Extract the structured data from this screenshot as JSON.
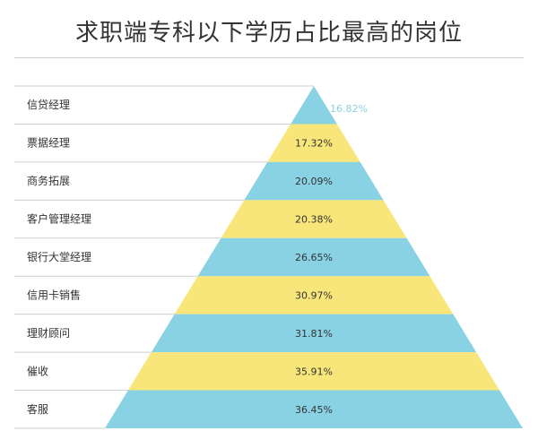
{
  "title": "求职端专科以下学历占比最高的岗位",
  "colors": {
    "blue": "#89D2E4",
    "yellow": "#F9E67A",
    "top_value_text": "#89D2E4",
    "row_line": "#cfcfcf"
  },
  "chart_data": {
    "type": "pyramid",
    "title": "求职端专科以下学历占比最高的岗位",
    "categories": [
      "信贷经理",
      "票据经理",
      "商务拓展",
      "客户管理经理",
      "银行大堂经理",
      "信用卡销售",
      "理财顾问",
      "催收",
      "客服"
    ],
    "values": [
      16.82,
      17.32,
      20.09,
      20.38,
      26.65,
      30.97,
      31.81,
      35.91,
      36.45
    ],
    "value_labels": [
      "16.82%",
      "17.32%",
      "20.09%",
      "20.38%",
      "26.65%",
      "30.97%",
      "31.81%",
      "35.91%",
      "36.45%"
    ],
    "unit": "%",
    "band_colors": [
      "blue",
      "yellow",
      "blue",
      "yellow",
      "blue",
      "yellow",
      "blue",
      "yellow",
      "blue"
    ]
  }
}
